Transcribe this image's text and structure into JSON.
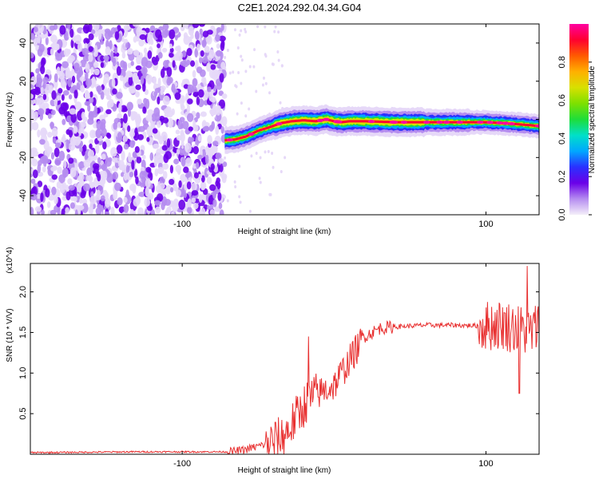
{
  "title": "C2E1.2024.292.04.34.G04",
  "chart_data": [
    {
      "type": "heatmap",
      "xlabel": "Height of straight line (km)",
      "ylabel": "Frequency (Hz)",
      "xlim": [
        -200,
        135
      ],
      "ylim": [
        -50,
        50
      ],
      "xticks": [
        -100,
        100
      ],
      "yticks": [
        40,
        20,
        0,
        -20,
        -40
      ],
      "colorbar": {
        "label": "Normalized spectral amplitude",
        "range": [
          0,
          1
        ],
        "ticks": [
          "0.0",
          "0.2",
          "0.4",
          "0.6",
          "0.8"
        ],
        "colors": [
          "#f4eef9",
          "#b58cf0",
          "#6a00e8",
          "#2a30ff",
          "#00a8ff",
          "#00e0c8",
          "#1edd3a",
          "#7ee000",
          "#d8e000",
          "#ffb000",
          "#ff5a00",
          "#ff0030",
          "#ff00a0"
        ]
      },
      "ridge": {
        "x": [
          -72,
          -65,
          -58,
          -50,
          -42,
          -35,
          -28,
          -20,
          -12,
          -5,
          0,
          5,
          10,
          20,
          40,
          60,
          80,
          100,
          112,
          120,
          128,
          135
        ],
        "y": [
          -11,
          -10.5,
          -9,
          -6,
          -4,
          -2,
          -1,
          -0.5,
          -1,
          0,
          -1,
          -1.5,
          -1,
          -1,
          -1.5,
          -1.5,
          -1.5,
          -1.5,
          -2,
          -2.5,
          -3,
          -3.5
        ]
      },
      "noise_region": {
        "x_from": -200,
        "x_to": -72
      }
    },
    {
      "type": "line",
      "xlabel": "Height of straight line (km)",
      "ylabel": "SNR (10 * V/V)",
      "y_multiplier": "(x10^4)",
      "xlim": [
        -200,
        135
      ],
      "ylim": [
        0,
        2.35
      ],
      "xticks": [
        -100,
        100
      ],
      "yticks": [
        "0.5",
        "1.0",
        "1.5",
        "2.0"
      ],
      "line_color": "#e83030",
      "trend": {
        "x": [
          -200,
          -130,
          -70,
          -60,
          -50,
          -40,
          -35,
          -30,
          -25,
          -20,
          -15,
          -10,
          -5,
          0,
          5,
          10,
          15,
          20,
          30,
          40,
          50,
          60,
          80,
          100,
          110,
          120,
          130,
          135
        ],
        "y": [
          0.02,
          0.03,
          0.03,
          0.05,
          0.1,
          0.15,
          0.2,
          0.3,
          0.45,
          0.6,
          0.7,
          0.75,
          0.8,
          0.85,
          1.0,
          1.15,
          1.3,
          1.45,
          1.55,
          1.57,
          1.58,
          1.59,
          1.59,
          1.58,
          1.6,
          1.55,
          1.5,
          1.6
        ]
      },
      "peaks": [
        {
          "x": -17,
          "y": 1.45
        },
        {
          "x": 127,
          "y": 2.32
        },
        {
          "x": 122,
          "y": 0.75
        }
      ]
    }
  ]
}
